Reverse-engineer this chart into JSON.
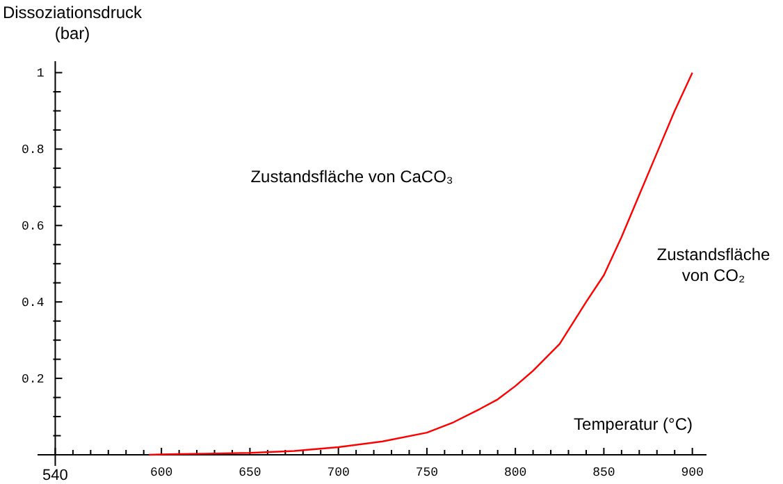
{
  "chart_data": {
    "type": "line",
    "xlabel": "Temperatur (°C)",
    "ylabel": "Dissoziationsdruck\n(bar)",
    "annotations": [
      "Zustandsfläche von CaCO₃",
      "Zustandsfläche\nvon CO₂"
    ],
    "x": [
      593,
      600,
      625,
      650,
      675,
      700,
      725,
      750,
      765,
      780,
      790,
      800,
      810,
      825,
      840,
      850,
      860,
      870,
      880,
      890,
      900
    ],
    "series": [
      {
        "color": "#ff0000",
        "values": [
          0,
          0.001,
          0.003,
          0.005,
          0.01,
          0.02,
          0.035,
          0.058,
          0.085,
          0.12,
          0.145,
          0.18,
          0.22,
          0.29,
          0.4,
          0.47,
          0.57,
          0.68,
          0.79,
          0.9,
          1.0
        ]
      }
    ],
    "xlim": [
      530,
      908
    ],
    "ylim": [
      0,
      1.03
    ],
    "xticks": [
      540,
      {
        "value": 550,
        "label": null
      },
      {
        "value": 560,
        "label": null
      },
      {
        "value": 570,
        "label": null
      },
      {
        "value": 580,
        "label": null
      },
      {
        "value": 590,
        "label": null
      },
      600,
      {
        "value": 610,
        "label": null
      },
      {
        "value": 620,
        "label": null
      },
      {
        "value": 630,
        "label": null
      },
      {
        "value": 640,
        "label": null
      },
      650,
      {
        "value": 660,
        "label": null
      },
      {
        "value": 670,
        "label": null
      },
      {
        "value": 680,
        "label": null
      },
      {
        "value": 690,
        "label": null
      },
      700,
      {
        "value": 710,
        "label": null
      },
      {
        "value": 720,
        "label": null
      },
      {
        "value": 730,
        "label": null
      },
      {
        "value": 740,
        "label": null
      },
      750,
      {
        "value": 760,
        "label": null
      },
      {
        "value": 770,
        "label": null
      },
      {
        "value": 780,
        "label": null
      },
      {
        "value": 790,
        "label": null
      },
      800,
      {
        "value": 810,
        "label": null
      },
      {
        "value": 820,
        "label": null
      },
      {
        "value": 830,
        "label": null
      },
      {
        "value": 840,
        "label": null
      },
      850,
      {
        "value": 860,
        "label": null
      },
      {
        "value": 870,
        "label": null
      },
      {
        "value": 880,
        "label": null
      },
      {
        "value": 890,
        "label": null
      },
      900
    ],
    "yticks": [
      {
        "value": 0.05,
        "label": null
      },
      {
        "value": 0.1,
        "label": null
      },
      {
        "value": 0.15,
        "label": null
      },
      0.2,
      {
        "value": 0.25,
        "label": null
      },
      {
        "value": 0.3,
        "label": null
      },
      {
        "value": 0.35,
        "label": null
      },
      0.4,
      {
        "value": 0.45,
        "label": null
      },
      {
        "value": 0.5,
        "label": null
      },
      {
        "value": 0.55,
        "label": null
      },
      0.6,
      {
        "value": 0.65,
        "label": null
      },
      {
        "value": 0.7,
        "label": null
      },
      {
        "value": 0.75,
        "label": null
      },
      0.8,
      {
        "value": 0.85,
        "label": null
      },
      {
        "value": 0.9,
        "label": null
      },
      {
        "value": 0.95,
        "label": null
      },
      1
    ],
    "grid": false
  }
}
